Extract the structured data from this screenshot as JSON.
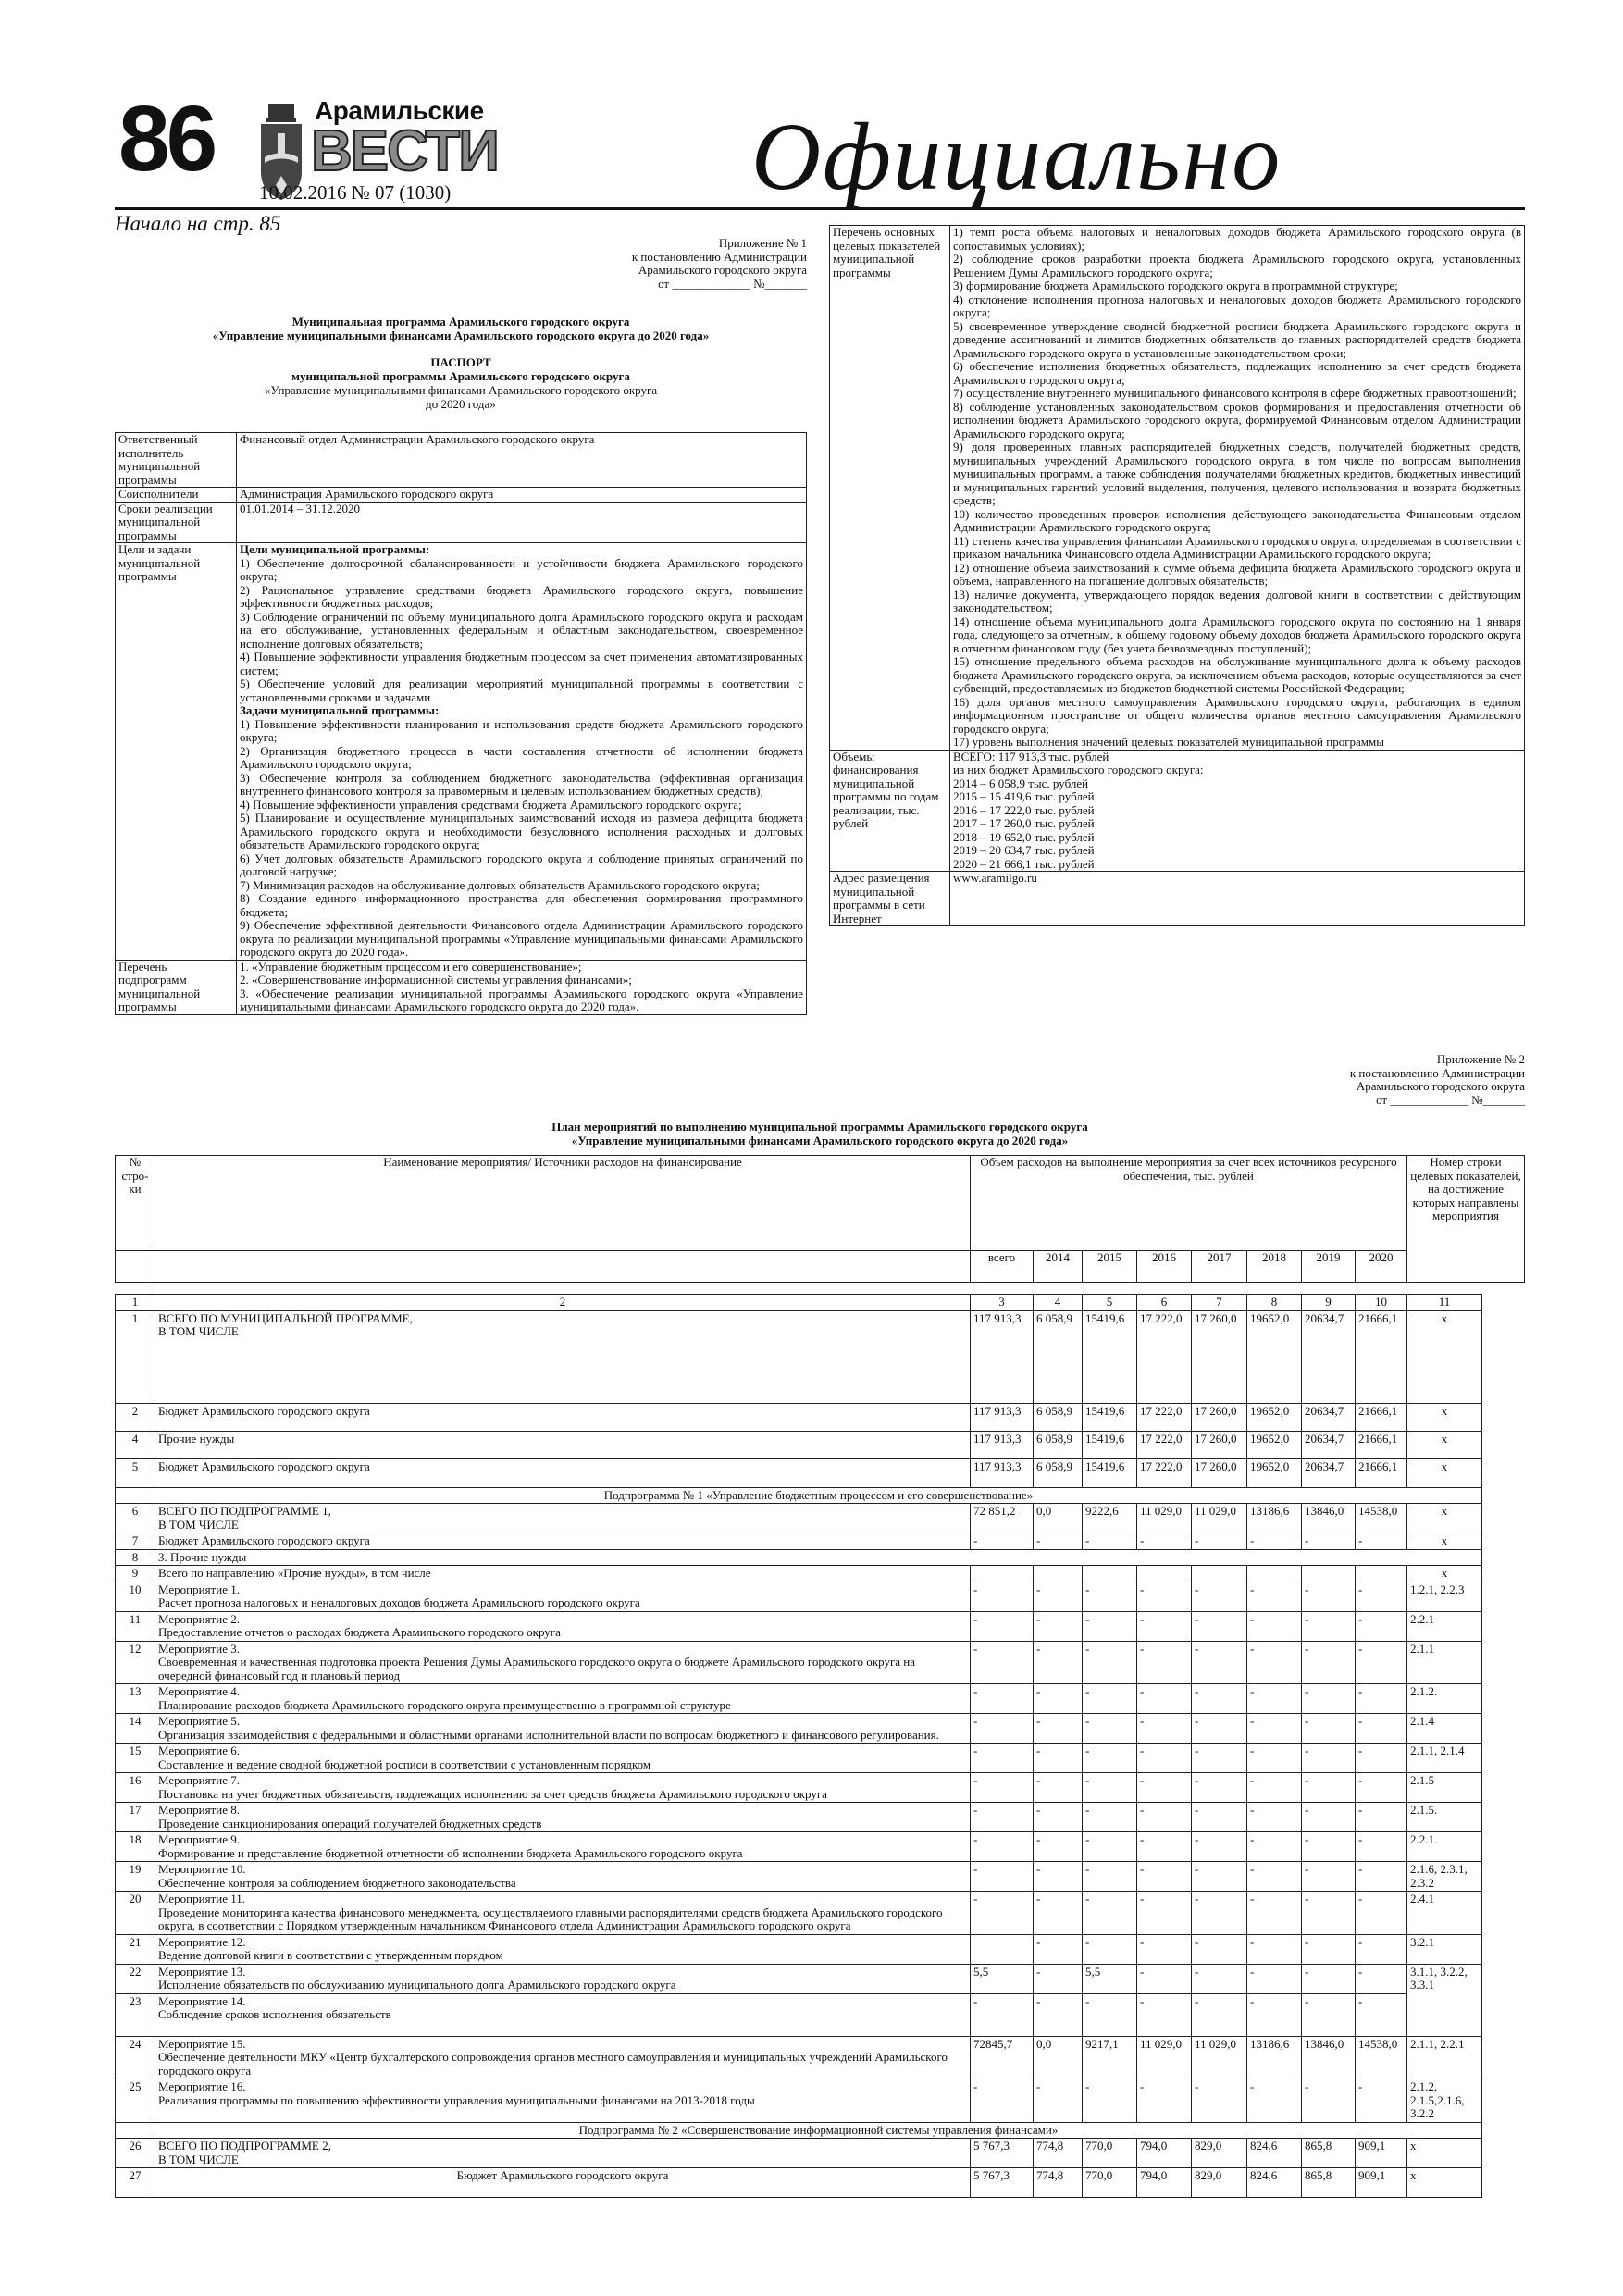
{
  "masthead": {
    "page_number": "86",
    "logo_top": "Арамильские",
    "logo_main": "ВЕСТИ",
    "issue": "10.02.2016  № 07 (1030)",
    "section": "Официально",
    "continued": "Начало на стр. 85"
  },
  "appendix1": {
    "lines": [
      "Приложение № 1",
      "к постановлению Администрации",
      "Арамильского городского округа",
      "от _____________ №_______"
    ]
  },
  "program_title": {
    "bold": [
      "Муниципальная программа Арамильского городского округа",
      "«Управление муниципальными финансами Арамильского городского округа до 2020 года»"
    ],
    "passport_bold": [
      "ПАСПОРТ",
      "муниципальной программы Арамильского городского округа"
    ],
    "passport_plain": [
      "«Управление муниципальными финансами Арамильского городского округа",
      "до 2020 года»"
    ]
  },
  "passport_left": [
    {
      "label": "Ответственный исполнитель муниципальной программы",
      "items": [
        {
          "t": "Финансовый отдел Администрации Арамильского городского округа"
        }
      ]
    },
    {
      "label": "Соисполнители",
      "items": [
        {
          "t": "Администрация Арамильского городского округа"
        }
      ]
    },
    {
      "label": "Сроки реализации муниципальной программы",
      "items": [
        {
          "t": "01.01.2014 – 31.12.2020"
        }
      ]
    },
    {
      "label": "Цели и задачи муниципальной программы",
      "items": [
        {
          "t": "Цели муниципальной программы:",
          "b": true
        },
        {
          "t": "1) Обеспечение долгосрочной сбалансированности и устойчивости бюджета Арамильского городского округа;"
        },
        {
          "t": "2) Рациональное управление средствами бюджета Арамильского городского округа, повышение эффективности бюджетных расходов;"
        },
        {
          "t": "3) Соблюдение ограничений по объему муниципального долга Арамильского городского округа и расходам на его обслуживание, установленных федеральным и областным законодательством, своевременное исполнение долговых обязательств;"
        },
        {
          "t": "4) Повышение эффективности управления бюджетным процессом за счет применения автоматизированных систем;"
        },
        {
          "t": "5) Обеспечение условий для реализации мероприятий муниципальной программы в соответствии с установленными сроками и задачами"
        },
        {
          "t": "Задачи муниципальной программы:",
          "b": true
        },
        {
          "t": "1) Повышение эффективности планирования и использования средств бюджета Арамильского городского округа;"
        },
        {
          "t": "2) Организация бюджетного процесса в части составления отчетности об исполнении бюджета Арамильского городского округа;"
        },
        {
          "t": "3) Обеспечение контроля за соблюдением бюджетного законодательства (эффективная организация внутреннего финансового контроля за правомерным и целевым использованием бюджетных средств);"
        },
        {
          "t": "4) Повышение эффективности управления средствами бюджета Арамильского городского округа;"
        },
        {
          "t": "5) Планирование и осуществление муниципальных заимствований исходя из размера дефицита бюджета Арамильского городского округа и необходимости безусловного исполнения расходных и долговых обязательств Арамильского городского округа;"
        },
        {
          "t": "6) Учет долговых обязательств Арамильского городского округа и соблюдение принятых ограничений по долговой нагрузке;"
        },
        {
          "t": "7) Минимизация расходов на обслуживание долговых обязательств Арамильского городского округа;"
        },
        {
          "t": "8) Создание единого информационного пространства для обеспечения формирования программного бюджета;"
        },
        {
          "t": "9) Обеспечение эффективной деятельности Финансового отдела Администрации Арамильского городского округа по реализации муниципальной программы «Управление муниципальными финансами Арамильского городского округа до 2020 года»."
        }
      ]
    },
    {
      "label": "Перечень подпрограмм муниципальной программы",
      "items": [
        {
          "t": "1. «Управление бюджетным процессом и его совершенствование»;"
        },
        {
          "t": "2. «Совершенствование информационной системы управления финансами»;"
        },
        {
          "t": "3. «Обеспечение реализации муниципальной программы Арамильского городского округа «Управление муниципальными финансами Арамильского городского округа до 2020 года»."
        }
      ]
    }
  ],
  "passport_right": [
    {
      "label": "Перечень основных целевых показателей муниципальной программы",
      "items": [
        {
          "t": "1) темп роста объема налоговых и неналоговых доходов бюджета Арамильского городского округа (в сопоставимых условиях);"
        },
        {
          "t": "2) соблюдение сроков разработки проекта бюджета Арамильского городского округа, установленных Решением Думы Арамильского городского округа;"
        },
        {
          "t": "3) формирование бюджета Арамильского городского округа в программной структуре;"
        },
        {
          "t": "4) отклонение исполнения прогноза налоговых и неналоговых доходов бюджета Арамильского городского округа;"
        },
        {
          "t": "5) своевременное утверждение сводной бюджетной росписи бюджета Арамильского городского округа и доведение ассигнований и лимитов бюджетных обязательств до главных распорядителей средств бюджета Арамильского городского округа в установленные законодательством сроки;"
        },
        {
          "t": "6) обеспечение исполнения бюджетных обязательств, подлежащих исполнению за счет средств бюджета Арамильского городского округа;"
        },
        {
          "t": "7) осуществление внутреннего муниципального финансового контроля в сфере бюджетных правоотношений;"
        },
        {
          "t": "8) соблюдение установленных законодательством сроков формирования и предоставления отчетности об исполнении бюджета Арамильского городского округа, формируемой Финансовым отделом Администрации Арамильского городского округа;"
        },
        {
          "t": "9) доля проверенных главных распорядителей бюджетных средств, получателей бюджетных средств, муниципальных учреждений Арамильского городского округа, в том числе по вопросам выполнения муниципальных программ, а также соблюдения получателями бюджетных кредитов, бюджетных инвестиций и муниципальных гарантий условий выделения, получения, целевого использования и возврата бюджетных средств;"
        },
        {
          "t": "10) количество проведенных проверок исполнения действующего законодательства Финансовым отделом Администрации Арамильского городского округа;"
        },
        {
          "t": "11) степень качества управления финансами Арамильского городского округа, определяемая в соответствии с приказом начальника Финансового отдела Администрации Арамильского городского округа;"
        },
        {
          "t": "12) отношение объема заимствований к сумме объема дефицита бюджета Арамильского городского округа и объема, направленного на погашение долговых обязательств;"
        },
        {
          "t": "13) наличие документа, утверждающего порядок ведения долговой книги в соответствии с действующим законодательством;"
        },
        {
          "t": "14) отношение объема муниципального долга Арамильского городского округа по состоянию на 1 января года, следующего за отчетным, к общему годовому объему доходов бюджета Арамильского городского округа в отчетном финансовом году (без учета безвозмездных поступлений);"
        },
        {
          "t": "15) отношение предельного объема расходов на обслуживание муниципального долга к объему расходов бюджета Арамильского городского округа, за исключением объема расходов, которые осуществляются за счет субвенций, предоставляемых из бюджетов бюджетной системы Российской Федерации;"
        },
        {
          "t": "16) доля органов местного самоуправления Арамильского городского округа, работающих в едином информационном пространстве от общего количества органов местного самоуправления Арамильского городского округа;"
        },
        {
          "t": "17) уровень выполнения значений целевых показателей муниципальной программы"
        }
      ]
    },
    {
      "label": "Объемы финансирования муниципальной программы по годам реализации, тыс. рублей",
      "items": [
        {
          "t": "ВСЕГО: 117 913,3 тыс. рублей"
        },
        {
          "t": "из них бюджет Арамильского городского округа:"
        },
        {
          "t": "2014 – 6 058,9 тыс. рублей"
        },
        {
          "t": "2015 – 15 419,6 тыс. рублей"
        },
        {
          "t": "2016 – 17 222,0 тыс. рублей"
        },
        {
          "t": "2017 – 17 260,0 тыс. рублей"
        },
        {
          "t": "2018 – 19 652,0 тыс. рублей"
        },
        {
          "t": "2019 – 20 634,7 тыс. рублей"
        },
        {
          "t": "2020 – 21 666,1 тыс. рублей"
        }
      ]
    },
    {
      "label": "Адрес размещения муниципальной программы в сети Интернет",
      "items": [
        {
          "t": "www.aramilgo.ru"
        }
      ]
    }
  ],
  "appendix2": {
    "lines": [
      "Приложение № 2",
      "к постановлению Администрации",
      "Арамильского городского округа",
      "от _____________ №_______"
    ]
  },
  "plan_title": [
    "План мероприятий по выполнению муниципальной программы Арамильского городского округа",
    "«Управление муниципальными финансами Арамильского городского округа до 2020 года»"
  ],
  "plan_header": {
    "num": "№ стро-ки",
    "name": "Наименование мероприятия/ Источники расходов на финансирование",
    "volume": "Объем расходов на выполнение мероприятия за счет всех источников ресурсного обеспечения, тыс. рублей",
    "target": "Номер строки целевых показателей, на достижение которых направлены мероприятия",
    "years": [
      "всего",
      "2014",
      "2015",
      "2016",
      "2017",
      "2018",
      "2019",
      "2020"
    ],
    "col_numbers": [
      "1",
      "2",
      "3",
      "4",
      "5",
      "6",
      "7",
      "8",
      "9",
      "10",
      "11"
    ]
  },
  "plan_rows": [
    {
      "n": "1",
      "name": [
        "ВСЕГО ПО МУНИЦИПАЛЬНОЙ ПРОГРАММЕ,",
        "В ТОМ ЧИСЛЕ"
      ],
      "v": [
        "117 913,3",
        "6 058,9",
        "15419,6",
        "17 222,0",
        "17 260,0",
        "19652,0",
        "20634,7",
        "21666,1"
      ],
      "t": "х",
      "h": 100,
      "tc": true
    },
    {
      "n": "2",
      "name": [
        "Бюджет Арамильского городского округа"
      ],
      "v": [
        "117 913,3",
        "6 058,9",
        "15419,6",
        "17 222,0",
        "17 260,0",
        "19652,0",
        "20634,7",
        "21666,1"
      ],
      "t": "х",
      "h": 30,
      "tc": true
    },
    {
      "n": "4",
      "name": [
        "Прочие нужды"
      ],
      "v": [
        "117 913,3",
        "6 058,9",
        "15419,6",
        "17 222,0",
        "17 260,0",
        "19652,0",
        "20634,7",
        "21666,1"
      ],
      "t": "х",
      "h": 30,
      "tc": true
    },
    {
      "n": "5",
      "name": [
        "Бюджет Арамильского городского округа"
      ],
      "v": [
        "117 913,3",
        "6 058,9",
        "15419,6",
        "17 222,0",
        "17 260,0",
        "19652,0",
        "20634,7",
        "21666,1"
      ],
      "t": "х",
      "h": 31,
      "tc": true
    },
    {
      "section": "Подпрограмма № 1 «Управление бюджетным процессом и его совершенствование»"
    },
    {
      "n": "6",
      "name": [
        "ВСЕГО ПО ПОДПРОГРАММЕ 1,",
        "В ТОМ ЧИСЛЕ"
      ],
      "v": [
        "72 851,2",
        "0,0",
        "9222,6",
        "11 029,0",
        "11 029,0",
        "13186,6",
        "13846,0",
        "14538,0"
      ],
      "t": "х",
      "tc": true
    },
    {
      "n": "7",
      "name": [
        "Бюджет Арамильского городского округа"
      ],
      "v": [
        "-",
        "-",
        "-",
        "-",
        "-",
        "-",
        "-",
        "-"
      ],
      "t": "х",
      "tc": true
    },
    {
      "n": "8",
      "name": [
        "3. Прочие нужды"
      ],
      "span": true
    },
    {
      "n": "9",
      "name": [
        "Всего по направлению «Прочие нужды», в том числе"
      ],
      "v": [
        "",
        "",
        "",
        "",
        "",
        "",
        "",
        ""
      ],
      "t": "х",
      "tc": true
    },
    {
      "n": "10",
      "name": [
        "Мероприятие 1.",
        "Расчет прогноза налоговых и неналоговых доходов бюджета Арамильского городского округа"
      ],
      "v": [
        "-",
        "-",
        "-",
        "-",
        "-",
        "-",
        "-",
        "-"
      ],
      "t": "1.2.1, 2.2.3"
    },
    {
      "n": "11",
      "name": [
        "Мероприятие 2.",
        "Предоставление отчетов о расходах бюджета Арамильского городского округа"
      ],
      "v": [
        "-",
        "-",
        "-",
        "-",
        "-",
        "-",
        "-",
        "-"
      ],
      "t": "2.2.1"
    },
    {
      "n": "12",
      "name": [
        "Мероприятие 3.",
        "Своевременная и качественная подготовка проекта Решения Думы Арамильского городского округа о бюджете Арамильского городского округа на очередной финансовый год и плановый период"
      ],
      "v": [
        "-",
        "-",
        "-",
        "-",
        "-",
        "-",
        "-",
        "-"
      ],
      "t": "2.1.1"
    },
    {
      "n": "13",
      "name": [
        "Мероприятие 4.",
        "Планирование расходов бюджета Арамильского городского округа преимущественно в программной структуре"
      ],
      "v": [
        "-",
        "-",
        "-",
        "-",
        "-",
        "-",
        "-",
        "-"
      ],
      "t": "2.1.2."
    },
    {
      "n": "14",
      "name": [
        "Мероприятие 5.",
        "Организация взаимодействия с федеральными и областными органами исполнительной власти по вопросам бюджетного и финансового регулирования."
      ],
      "v": [
        "-",
        "-",
        "-",
        "-",
        "-",
        "-",
        "-",
        "-"
      ],
      "t": "2.1.4"
    },
    {
      "n": "15",
      "name": [
        "Мероприятие 6.",
        "Составление и ведение сводной бюджетной росписи в соответствии с установленным порядком"
      ],
      "v": [
        "-",
        "-",
        "-",
        "-",
        "-",
        "-",
        "-",
        "-"
      ],
      "t": "2.1.1, 2.1.4"
    },
    {
      "n": "16",
      "name": [
        "Мероприятие 7.",
        "Постановка на учет бюджетных обязательств, подлежащих исполнению за счет средств бюджета Арамильского городского округа"
      ],
      "v": [
        "-",
        "-",
        "-",
        "-",
        "-",
        "-",
        "-",
        "-"
      ],
      "t": "2.1.5"
    },
    {
      "n": "17",
      "name": [
        "Мероприятие 8.",
        "Проведение санкционирования операций получателей бюджетных средств"
      ],
      "v": [
        "-",
        "-",
        "-",
        "-",
        "-",
        "-",
        "-",
        "-"
      ],
      "t": "2.1.5."
    },
    {
      "n": "18",
      "name": [
        "Мероприятие 9.",
        "Формирование и представление бюджетной отчетности об исполнении бюджета Арамильского городского округа"
      ],
      "v": [
        "-",
        "-",
        "-",
        "-",
        "-",
        "-",
        "-",
        "-"
      ],
      "t": "2.2.1."
    },
    {
      "n": "19",
      "name": [
        "Мероприятие 10.",
        "Обеспечение контроля за соблюдением бюджетного законодательства"
      ],
      "v": [
        "-",
        "-",
        "-",
        "-",
        "-",
        "-",
        "-",
        "-"
      ],
      "t": "2.1.6, 2.3.1, 2.3.2"
    },
    {
      "n": "20",
      "name": [
        "Мероприятие 11.",
        "Проведение мониторинга качества финансового менеджмента, осуществляемого главными распорядителями средств бюджета Арамильского городского округа, в соответствии с Порядком утвержденным начальником Финансового отдела Администрации Арамильского городского округа"
      ],
      "v": [
        "-",
        "-",
        "-",
        "-",
        "-",
        "-",
        "-",
        "-"
      ],
      "t": "2.4.1"
    },
    {
      "n": "21",
      "name": [
        "Мероприятие 12.",
        "Ведение долговой книги в соответствии с утвержденным порядком"
      ],
      "v": [
        "",
        "-",
        "-",
        "-",
        "-",
        "-",
        "-",
        "-"
      ],
      "t": "3.2.1"
    },
    {
      "n": "22",
      "name": [
        "Мероприятие 13.",
        "Исполнение обязательств по обслуживанию муниципального долга Арамильского городского округа"
      ],
      "v": [
        "5,5",
        "-",
        "5,5",
        "-",
        "-",
        "-",
        "-",
        "-"
      ],
      "t": "3.1.1, 3.2.2, 3.3.1",
      "rs": 2
    },
    {
      "n": "23",
      "name": [
        "Мероприятие 14.",
        "Соблюдение сроков исполнения обязательств"
      ],
      "v": [
        "-",
        "-",
        "-",
        "-",
        "-",
        "-",
        "-",
        "-"
      ],
      "h": 46,
      "skipT": true
    },
    {
      "n": "24",
      "name": [
        "Мероприятие 15.",
        "Обеспечение деятельности МКУ «Центр бухгалтерского сопровождения органов местного самоуправления и муниципальных учреждений Арамильского городского округа"
      ],
      "v": [
        "72845,7",
        "0,0",
        "9217,1",
        "11 029,0",
        "11 029,0",
        "13186,6",
        "13846,0",
        "14538,0"
      ],
      "t": "2.1.1, 2.2.1"
    },
    {
      "n": "25",
      "name": [
        "Мероприятие 16.",
        "Реализация программы по повышению эффективности управления муниципальными финансами на 2013-2018 годы"
      ],
      "v": [
        "-",
        "-",
        "-",
        "-",
        "-",
        "-",
        "-",
        "-"
      ],
      "t": "2.1.2, 2.1.5,2.1.6, 3.2.2"
    },
    {
      "section": "Подпрограмма № 2 «Совершенствование информационной системы управления финансами»"
    },
    {
      "n": "26",
      "name": [
        "ВСЕГО ПО ПОДПРОГРАММЕ 2,",
        "В ТОМ ЧИСЛЕ"
      ],
      "v": [
        "5 767,3",
        "774,8",
        "770,0",
        "794,0",
        "829,0",
        "824,6",
        "865,8",
        "909,1"
      ],
      "t": "х"
    },
    {
      "n": "27",
      "name": [
        "Бюджет Арамильского городского округа"
      ],
      "v": [
        "5 767,3",
        "774,8",
        "770,0",
        "794,0",
        "829,0",
        "824,6",
        "865,8",
        "909,1"
      ],
      "t": "х",
      "nc": true,
      "h": 32
    }
  ]
}
